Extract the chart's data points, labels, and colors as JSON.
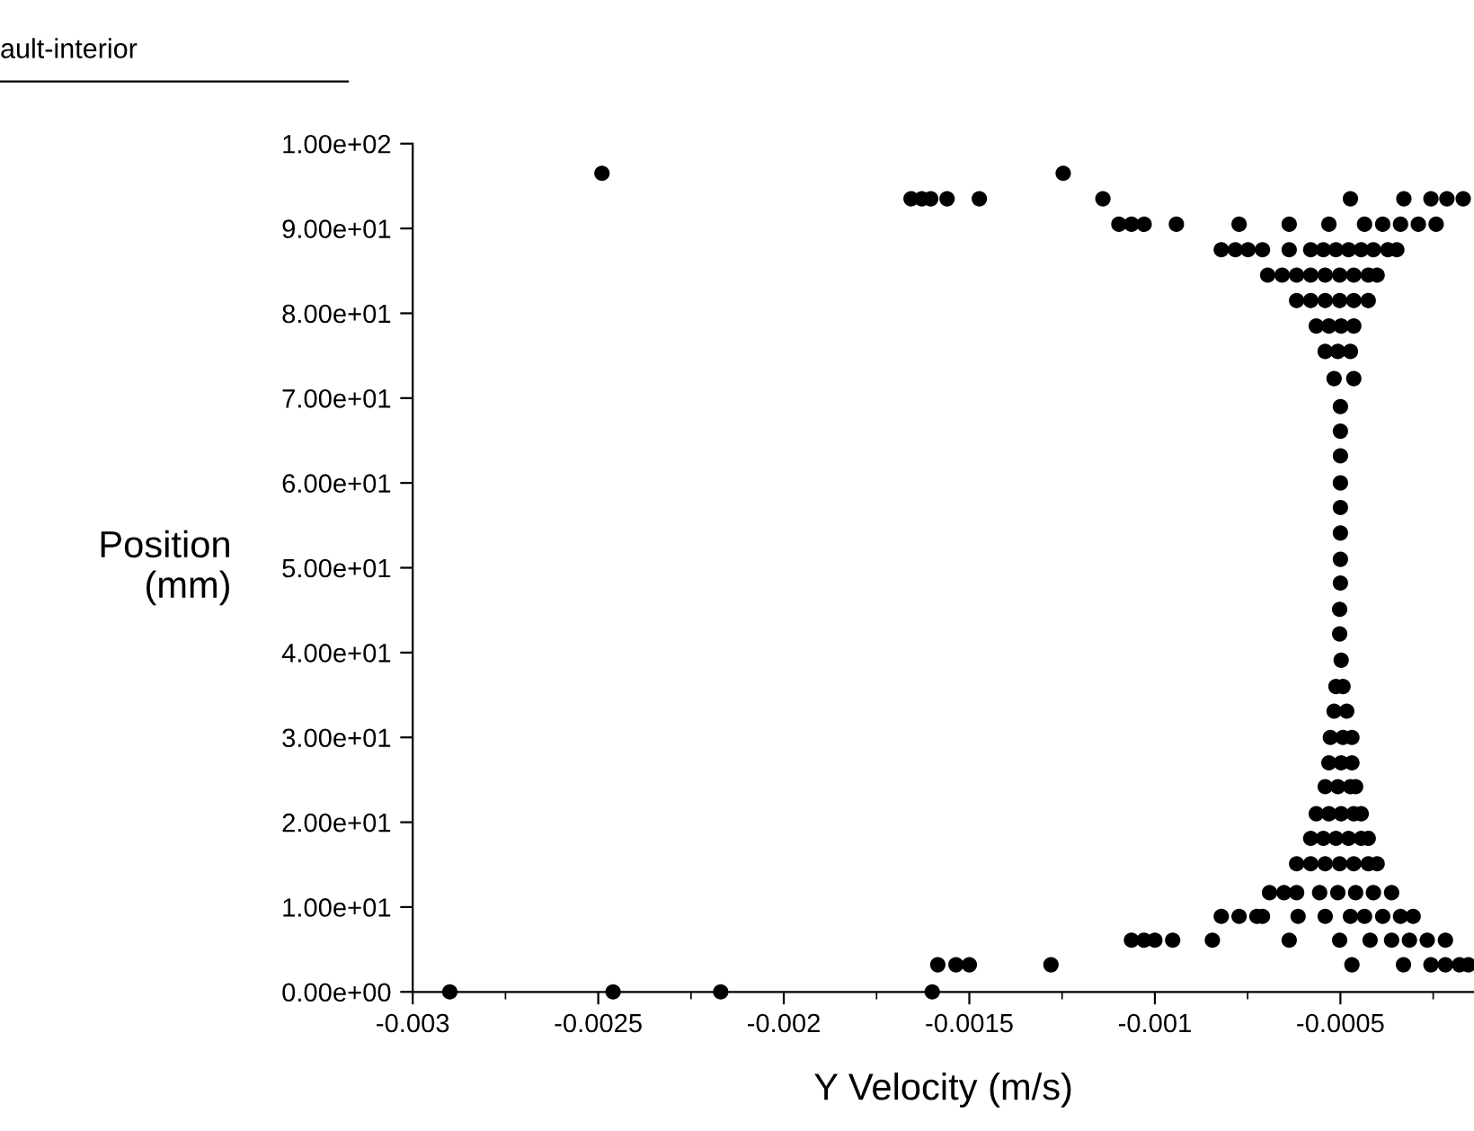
{
  "chart_data": {
    "type": "scatter",
    "xlabel": "Y Velocity (m/s)",
    "ylabel": "Position\n(mm)",
    "annotations": [
      "ault-interior"
    ],
    "marker": "circle",
    "grid": false,
    "legend": false,
    "xlim": [
      -0.003,
      -0.00014
    ],
    "ylim": [
      0,
      100
    ],
    "xticks": [
      -0.003,
      {
        "value": -0.00275,
        "label": null
      },
      -0.0025,
      {
        "value": -0.00225,
        "label": null
      },
      -0.002,
      {
        "value": -0.00175,
        "label": null
      },
      -0.0015,
      {
        "value": -0.00125,
        "label": null
      },
      -0.001,
      {
        "value": -0.00075,
        "label": null
      },
      -0.0005,
      {
        "value": -0.00025,
        "label": null
      }
    ],
    "yticks": [
      {
        "value": 0,
        "label": "0.00e+00"
      },
      {
        "value": 10,
        "label": "1.00e+01"
      },
      {
        "value": 20,
        "label": "2.00e+01"
      },
      {
        "value": 30,
        "label": "3.00e+01"
      },
      {
        "value": 40,
        "label": "4.00e+01"
      },
      {
        "value": 50,
        "label": "5.00e+01"
      },
      {
        "value": 60,
        "label": "6.00e+01"
      },
      {
        "value": 70,
        "label": "7.00e+01"
      },
      {
        "value": 80,
        "label": "8.00e+01"
      },
      {
        "value": 90,
        "label": "9.00e+01"
      },
      {
        "value": 100,
        "label": "1.00e+02"
      }
    ],
    "series": [
      {
        "color": "#000000",
        "x": [
          -0.0029,
          -0.00246,
          -0.00217,
          -0.0016,
          -0.001585,
          -0.001536,
          -0.0015,
          -0.00128,
          -0.000469,
          -0.00033,
          -0.000256,
          -0.000217,
          -0.000179,
          -0.000155,
          -0.001063,
          -0.001029,
          -0.001,
          -0.000952,
          -0.000845,
          -0.000638,
          -0.000502,
          -0.00042,
          -0.000362,
          -0.000314,
          -0.000266,
          -0.000217,
          -0.000821,
          -0.000773,
          -0.000725,
          -0.00071,
          -0.000614,
          -0.000541,
          -0.000473,
          -0.000435,
          -0.000386,
          -0.000338,
          -0.000304,
          -0.000691,
          -0.000652,
          -0.000618,
          -0.000556,
          -0.000507,
          -0.000459,
          -0.000411,
          -0.000362,
          -0.000618,
          -0.00058,
          -0.000541,
          -0.000502,
          -0.000464,
          -0.000425,
          -0.000401,
          -0.00058,
          -0.000546,
          -0.000512,
          -0.000478,
          -0.000444,
          -0.000425,
          -0.000565,
          -0.000531,
          -0.000498,
          -0.000464,
          -0.000444,
          -0.000541,
          -0.000507,
          -0.000473,
          -0.000459,
          -0.000531,
          -0.000498,
          -0.000469,
          -0.000527,
          -0.000493,
          -0.000469,
          -0.000517,
          -0.000483,
          -0.000512,
          -0.000493,
          -0.000498,
          -0.000502,
          -0.000502,
          -0.0005,
          -0.0005,
          -0.0005,
          -0.0005,
          -0.0005,
          -0.0005,
          -0.0005,
          -0.0005,
          -0.000517,
          -0.000464,
          -0.000541,
          -0.000507,
          -0.000473,
          -0.000565,
          -0.000531,
          -0.000498,
          -0.000464,
          -0.000618,
          -0.00058,
          -0.000541,
          -0.000502,
          -0.000464,
          -0.000425,
          -0.000696,
          -0.000657,
          -0.000618,
          -0.00058,
          -0.000541,
          -0.000502,
          -0.000464,
          -0.000425,
          -0.000401,
          -0.000821,
          -0.000783,
          -0.000749,
          -0.00071,
          -0.000638,
          -0.00058,
          -0.000546,
          -0.000512,
          -0.000478,
          -0.000444,
          -0.000411,
          -0.000372,
          -0.000348,
          -0.001097,
          -0.001063,
          -0.001029,
          -0.000942,
          -0.000773,
          -0.000638,
          -0.000531,
          -0.000435,
          -0.000386,
          -0.000338,
          -0.00029,
          -0.000242,
          -0.001657,
          -0.001628,
          -0.001604,
          -0.00156,
          -0.001473,
          -0.00114,
          -0.000473,
          -0.000329,
          -0.000256,
          -0.000213,
          -0.000169,
          -0.00249,
          -0.001247
        ],
        "values": [
          0,
          0,
          0,
          0,
          3.2,
          3.2,
          3.2,
          3.2,
          3.2,
          3.2,
          3.2,
          3.2,
          3.2,
          3.2,
          6.1,
          6.1,
          6.1,
          6.1,
          6.1,
          6.1,
          6.1,
          6.1,
          6.1,
          6.1,
          6.1,
          6.1,
          8.9,
          8.9,
          8.9,
          8.9,
          8.9,
          8.9,
          8.9,
          8.9,
          8.9,
          8.9,
          8.9,
          11.7,
          11.7,
          11.7,
          11.7,
          11.7,
          11.7,
          11.7,
          11.7,
          15.1,
          15.1,
          15.1,
          15.1,
          15.1,
          15.1,
          15.1,
          18.1,
          18.1,
          18.1,
          18.1,
          18.1,
          18.1,
          21.0,
          21.0,
          21.0,
          21.0,
          21.0,
          24.2,
          24.2,
          24.2,
          24.2,
          27.0,
          27.0,
          27.0,
          30.0,
          30.0,
          30.0,
          33.1,
          33.1,
          36.0,
          36.0,
          39.1,
          42.2,
          45.1,
          48.2,
          51.0,
          54.1,
          57.1,
          60.0,
          63.2,
          66.1,
          69.0,
          72.3,
          72.3,
          75.5,
          75.5,
          75.5,
          78.5,
          78.5,
          78.5,
          78.5,
          81.5,
          81.5,
          81.5,
          81.5,
          81.5,
          81.5,
          84.5,
          84.5,
          84.5,
          84.5,
          84.5,
          84.5,
          84.5,
          84.5,
          84.5,
          87.5,
          87.5,
          87.5,
          87.5,
          87.5,
          87.5,
          87.5,
          87.5,
          87.5,
          87.5,
          87.5,
          87.5,
          87.5,
          90.5,
          90.5,
          90.5,
          90.5,
          90.5,
          90.5,
          90.5,
          90.5,
          90.5,
          90.5,
          90.5,
          90.5,
          93.5,
          93.5,
          93.5,
          93.5,
          93.5,
          93.5,
          93.5,
          93.5,
          93.5,
          93.5,
          93.5,
          96.5,
          96.5
        ]
      }
    ]
  }
}
